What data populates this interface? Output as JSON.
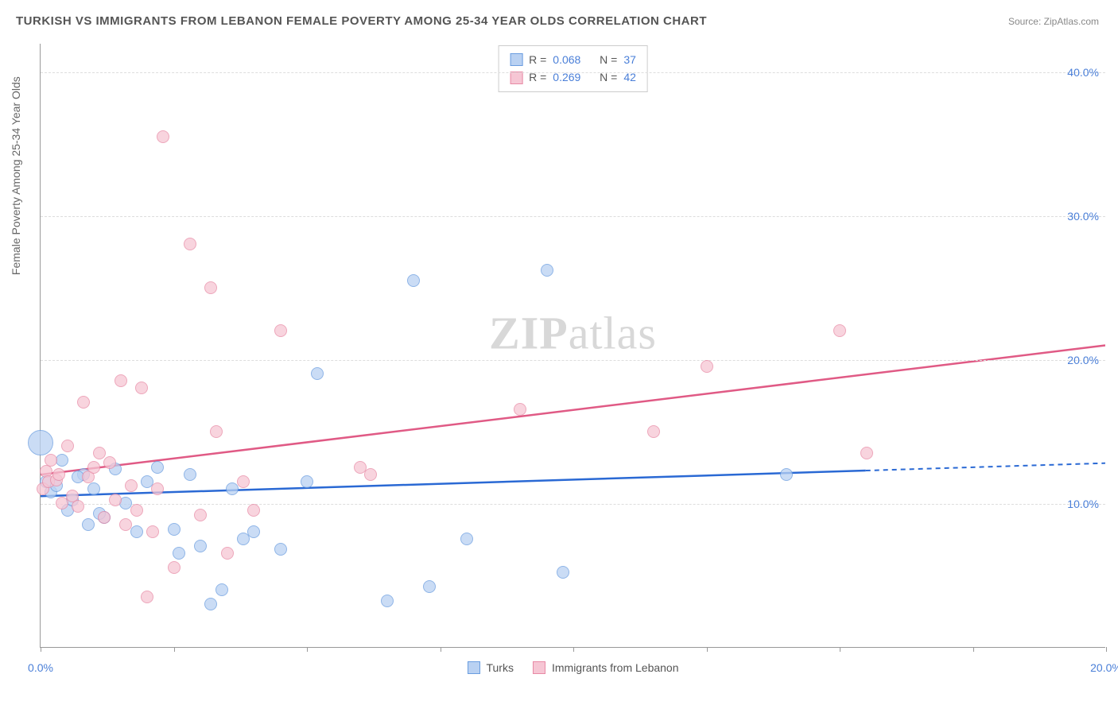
{
  "title": "TURKISH VS IMMIGRANTS FROM LEBANON FEMALE POVERTY AMONG 25-34 YEAR OLDS CORRELATION CHART",
  "source": "Source: ZipAtlas.com",
  "y_axis_label": "Female Poverty Among 25-34 Year Olds",
  "watermark_bold": "ZIP",
  "watermark_rest": "atlas",
  "chart": {
    "type": "scatter",
    "xlim": [
      0,
      20
    ],
    "ylim": [
      0,
      42
    ],
    "x_ticks": [
      0,
      2.5,
      5,
      7.5,
      10,
      12.5,
      15,
      17.5,
      20
    ],
    "x_tick_labels": {
      "0": "0.0%",
      "20": "20.0%"
    },
    "y_ticks": [
      10,
      20,
      30,
      40
    ],
    "y_tick_labels": {
      "10": "10.0%",
      "20": "20.0%",
      "30": "30.0%",
      "40": "40.0%"
    },
    "background_color": "#ffffff",
    "grid_color": "#dddddd",
    "axis_color": "#999999",
    "title_fontsize": 15,
    "label_fontsize": 14,
    "tick_color": "#4a7fd8"
  },
  "series": [
    {
      "name": "Turks",
      "label": "Turks",
      "fill": "#b9d1f2",
      "stroke": "#6a9de0",
      "line_color": "#2a69d4",
      "R": "0.068",
      "N": "37",
      "trend": {
        "x1": 0,
        "y1": 10.5,
        "x2": 20,
        "y2": 12.8,
        "dash_after_x": 15.5
      },
      "marker_radius": 8,
      "points": [
        {
          "x": 0.0,
          "y": 14.2,
          "r": 16
        },
        {
          "x": 0.1,
          "y": 11.5
        },
        {
          "x": 0.2,
          "y": 10.8
        },
        {
          "x": 0.3,
          "y": 11.2
        },
        {
          "x": 0.4,
          "y": 13.0
        },
        {
          "x": 0.5,
          "y": 9.5
        },
        {
          "x": 0.6,
          "y": 10.2
        },
        {
          "x": 0.8,
          "y": 12.0
        },
        {
          "x": 0.9,
          "y": 8.5
        },
        {
          "x": 1.0,
          "y": 11.0
        },
        {
          "x": 1.2,
          "y": 9.0
        },
        {
          "x": 1.4,
          "y": 12.4
        },
        {
          "x": 1.6,
          "y": 10.0
        },
        {
          "x": 1.8,
          "y": 8.0
        },
        {
          "x": 2.0,
          "y": 11.5
        },
        {
          "x": 2.2,
          "y": 12.5
        },
        {
          "x": 2.5,
          "y": 8.2
        },
        {
          "x": 2.6,
          "y": 6.5
        },
        {
          "x": 2.8,
          "y": 12.0
        },
        {
          "x": 3.0,
          "y": 7.0
        },
        {
          "x": 3.2,
          "y": 3.0
        },
        {
          "x": 3.4,
          "y": 4.0
        },
        {
          "x": 3.6,
          "y": 11.0
        },
        {
          "x": 3.8,
          "y": 7.5
        },
        {
          "x": 4.0,
          "y": 8.0
        },
        {
          "x": 4.5,
          "y": 6.8
        },
        {
          "x": 5.0,
          "y": 11.5
        },
        {
          "x": 5.2,
          "y": 19.0
        },
        {
          "x": 6.5,
          "y": 3.2
        },
        {
          "x": 7.0,
          "y": 25.5
        },
        {
          "x": 7.3,
          "y": 4.2
        },
        {
          "x": 8.0,
          "y": 7.5
        },
        {
          "x": 9.5,
          "y": 26.2
        },
        {
          "x": 9.8,
          "y": 5.2
        },
        {
          "x": 14.0,
          "y": 12.0
        },
        {
          "x": 1.1,
          "y": 9.3
        },
        {
          "x": 0.7,
          "y": 11.8
        }
      ]
    },
    {
      "name": "Immigrants from Lebanon",
      "label": "Immigrants from Lebanon",
      "fill": "#f6c6d4",
      "stroke": "#e88aa5",
      "line_color": "#e05a85",
      "R": "0.269",
      "N": "42",
      "trend": {
        "x1": 0,
        "y1": 12.0,
        "x2": 20,
        "y2": 21.0,
        "dash_after_x": null
      },
      "marker_radius": 8,
      "points": [
        {
          "x": 0.05,
          "y": 11.0
        },
        {
          "x": 0.1,
          "y": 12.2
        },
        {
          "x": 0.15,
          "y": 11.5
        },
        {
          "x": 0.2,
          "y": 13.0
        },
        {
          "x": 0.3,
          "y": 11.6
        },
        {
          "x": 0.35,
          "y": 12.0
        },
        {
          "x": 0.5,
          "y": 14.0
        },
        {
          "x": 0.6,
          "y": 10.5
        },
        {
          "x": 0.8,
          "y": 17.0
        },
        {
          "x": 0.9,
          "y": 11.8
        },
        {
          "x": 1.0,
          "y": 12.5
        },
        {
          "x": 1.2,
          "y": 9.0
        },
        {
          "x": 1.3,
          "y": 12.8
        },
        {
          "x": 1.5,
          "y": 18.5
        },
        {
          "x": 1.6,
          "y": 8.5
        },
        {
          "x": 1.8,
          "y": 9.5
        },
        {
          "x": 1.9,
          "y": 18.0
        },
        {
          "x": 2.0,
          "y": 3.5
        },
        {
          "x": 2.1,
          "y": 8.0
        },
        {
          "x": 2.3,
          "y": 35.5
        },
        {
          "x": 2.5,
          "y": 5.5
        },
        {
          "x": 2.8,
          "y": 28.0
        },
        {
          "x": 3.0,
          "y": 9.2
        },
        {
          "x": 3.2,
          "y": 25.0
        },
        {
          "x": 3.3,
          "y": 15.0
        },
        {
          "x": 3.5,
          "y": 6.5
        },
        {
          "x": 3.8,
          "y": 11.5
        },
        {
          "x": 4.0,
          "y": 9.5
        },
        {
          "x": 4.5,
          "y": 22.0
        },
        {
          "x": 6.0,
          "y": 12.5
        },
        {
          "x": 6.2,
          "y": 12.0
        },
        {
          "x": 9.0,
          "y": 16.5
        },
        {
          "x": 11.5,
          "y": 15.0
        },
        {
          "x": 12.5,
          "y": 19.5
        },
        {
          "x": 15.0,
          "y": 22.0
        },
        {
          "x": 15.5,
          "y": 13.5
        },
        {
          "x": 1.4,
          "y": 10.2
        },
        {
          "x": 0.7,
          "y": 9.8
        },
        {
          "x": 1.1,
          "y": 13.5
        },
        {
          "x": 0.4,
          "y": 10.0
        },
        {
          "x": 2.2,
          "y": 11.0
        },
        {
          "x": 1.7,
          "y": 11.2
        }
      ]
    }
  ],
  "legend_bottom": [
    {
      "label": "Turks",
      "fill": "#b9d1f2",
      "stroke": "#6a9de0"
    },
    {
      "label": "Immigrants from Lebanon",
      "fill": "#f6c6d4",
      "stroke": "#e88aa5"
    }
  ],
  "legend_rn_labels": {
    "r": "R =",
    "n": "N ="
  }
}
